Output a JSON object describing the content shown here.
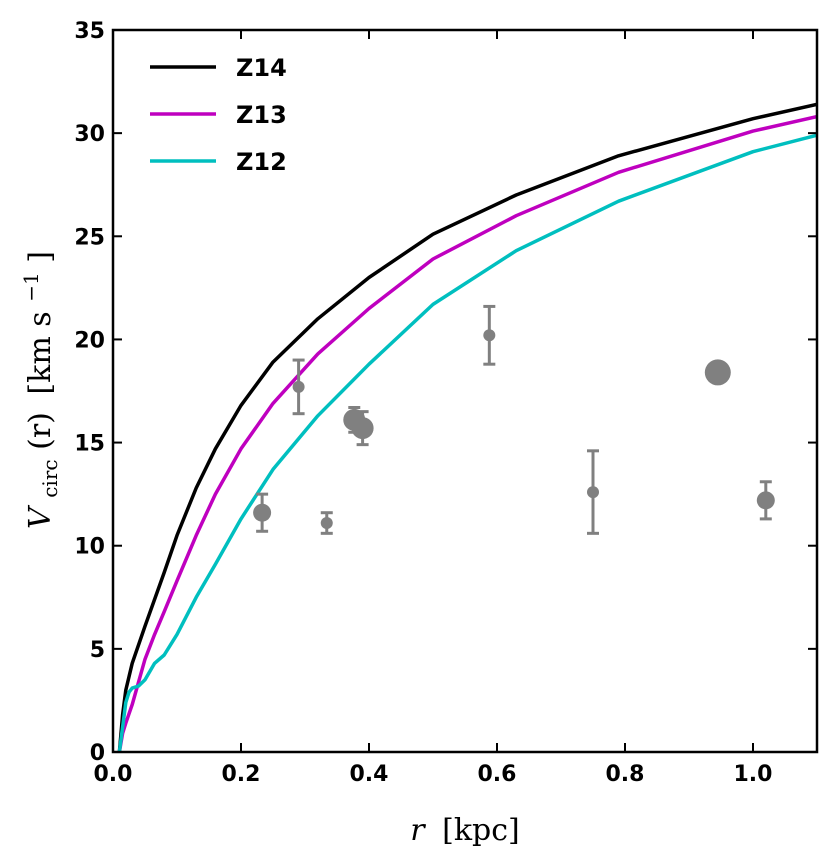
{
  "chart_data": {
    "type": "line",
    "title": "",
    "xlabel": {
      "var": "r",
      "unit": "[kpc]"
    },
    "ylabel": {
      "var": "V",
      "sub": "circ",
      "arg": "(r)",
      "unit": "[km s",
      "exp": "−1",
      "close": "]"
    },
    "xlim": [
      0,
      1.1
    ],
    "ylim": [
      0,
      35
    ],
    "xticks": [
      0.0,
      0.2,
      0.4,
      0.6,
      0.8,
      1.0
    ],
    "xtick_labels": [
      "0.0",
      "0.2",
      "0.4",
      "0.6",
      "0.8",
      "1.0"
    ],
    "yticks": [
      0,
      5,
      10,
      15,
      20,
      25,
      30,
      35
    ],
    "ytick_labels": [
      "0",
      "5",
      "10",
      "15",
      "20",
      "25",
      "30",
      "35"
    ],
    "grid": false,
    "legend_position": "top-left",
    "series": [
      {
        "name": "Z14",
        "color": "#000000",
        "x": [
          0.01,
          0.015,
          0.02,
          0.03,
          0.05,
          0.08,
          0.1,
          0.13,
          0.16,
          0.2,
          0.25,
          0.32,
          0.4,
          0.5,
          0.63,
          0.79,
          1.0,
          1.1
        ],
        "y": [
          0.0,
          1.8,
          3.0,
          4.3,
          6.1,
          8.7,
          10.5,
          12.8,
          14.7,
          16.8,
          18.9,
          21.0,
          23.0,
          25.1,
          27.0,
          28.9,
          30.7,
          31.4
        ]
      },
      {
        "name": "Z13",
        "color": "#bf00bf",
        "x": [
          0.01,
          0.015,
          0.02,
          0.03,
          0.05,
          0.065,
          0.08,
          0.1,
          0.13,
          0.16,
          0.2,
          0.25,
          0.32,
          0.4,
          0.5,
          0.63,
          0.79,
          1.0,
          1.1
        ],
        "y": [
          0.0,
          0.9,
          1.4,
          2.3,
          4.5,
          5.7,
          6.8,
          8.3,
          10.5,
          12.5,
          14.7,
          16.9,
          19.3,
          21.5,
          23.9,
          26.0,
          28.1,
          30.1,
          30.8
        ]
      },
      {
        "name": "Z12",
        "color": "#00bfbf",
        "x": [
          0.01,
          0.015,
          0.02,
          0.025,
          0.03,
          0.04,
          0.05,
          0.065,
          0.08,
          0.1,
          0.13,
          0.16,
          0.2,
          0.25,
          0.32,
          0.4,
          0.5,
          0.63,
          0.79,
          1.0,
          1.1
        ],
        "y": [
          0.0,
          1.2,
          2.4,
          2.9,
          3.1,
          3.2,
          3.5,
          4.3,
          4.7,
          5.7,
          7.5,
          9.1,
          11.3,
          13.7,
          16.3,
          18.8,
          21.7,
          24.3,
          26.7,
          29.1,
          29.9
        ]
      }
    ],
    "observations": {
      "color": "#808080",
      "points": [
        {
          "x": 0.233,
          "y": 11.6,
          "err": 0.9,
          "size": "medium"
        },
        {
          "x": 0.29,
          "y": 17.7,
          "err": 1.3,
          "size": "small"
        },
        {
          "x": 0.334,
          "y": 11.1,
          "err": 0.5,
          "size": "small"
        },
        {
          "x": 0.377,
          "y": 16.1,
          "err": 0.6,
          "size": "large"
        },
        {
          "x": 0.39,
          "y": 15.7,
          "err": 0.8,
          "size": "large"
        },
        {
          "x": 0.588,
          "y": 20.2,
          "err": 1.4,
          "size": "small"
        },
        {
          "x": 0.75,
          "y": 12.6,
          "err": 2.0,
          "size": "small"
        },
        {
          "x": 0.945,
          "y": 18.4,
          "err": 0,
          "size": "xlarge"
        },
        {
          "x": 1.02,
          "y": 12.2,
          "err": 0.9,
          "size": "medium"
        }
      ]
    }
  }
}
